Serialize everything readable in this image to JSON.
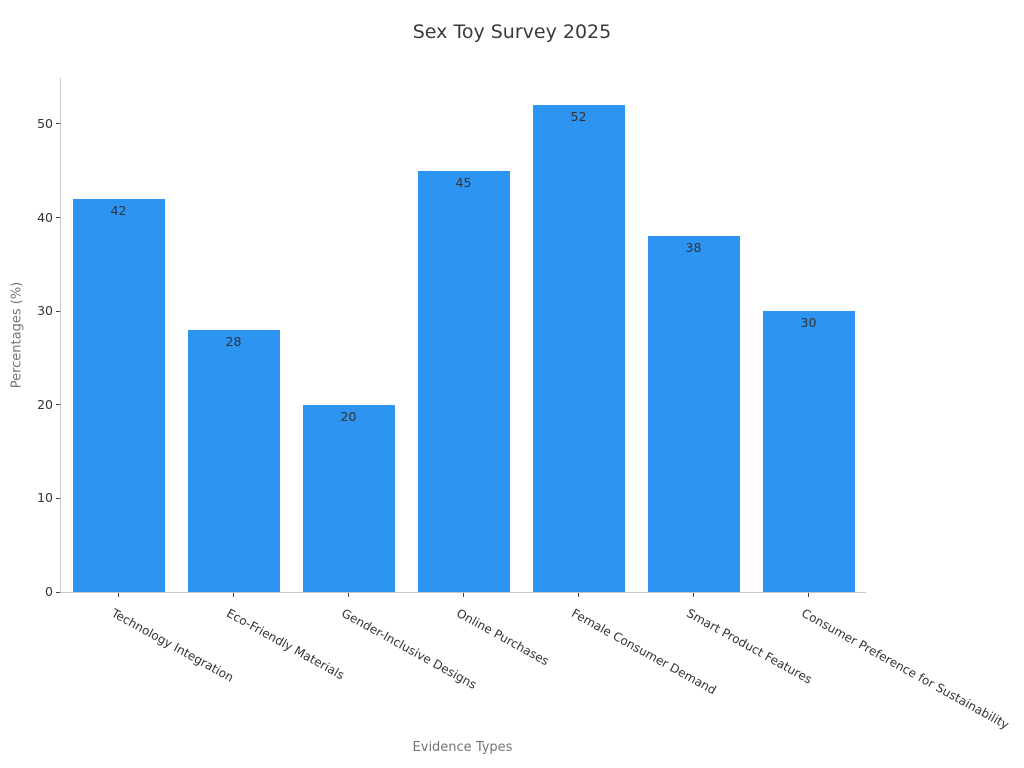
{
  "chart_data": {
    "type": "bar",
    "title": "Sex Toy Survey 2025",
    "xlabel": "Evidence Types",
    "ylabel": "Percentages (%)",
    "categories": [
      "Technology Integration",
      "Eco-Friendly Materials",
      "Gender-Inclusive Designs",
      "Online Purchases",
      "Female Consumer Demand",
      "Smart Product Features",
      "Consumer Preference for Sustainability"
    ],
    "values": [
      42,
      28,
      20,
      45,
      52,
      38,
      30
    ],
    "yticks": [
      0,
      10,
      20,
      30,
      40,
      50
    ],
    "ylim": [
      0,
      54.9
    ],
    "xticklabel_rotation_deg": 29,
    "grid": false,
    "legend": null,
    "colors": {
      "bar": "#2e94f2",
      "title_text": "#3a3a3a",
      "tick_text": "#333333",
      "axis_label_text": "#757575",
      "spine": "#c9c9c9",
      "tick_mark": "#444444",
      "value_label_text": "#333333"
    }
  }
}
